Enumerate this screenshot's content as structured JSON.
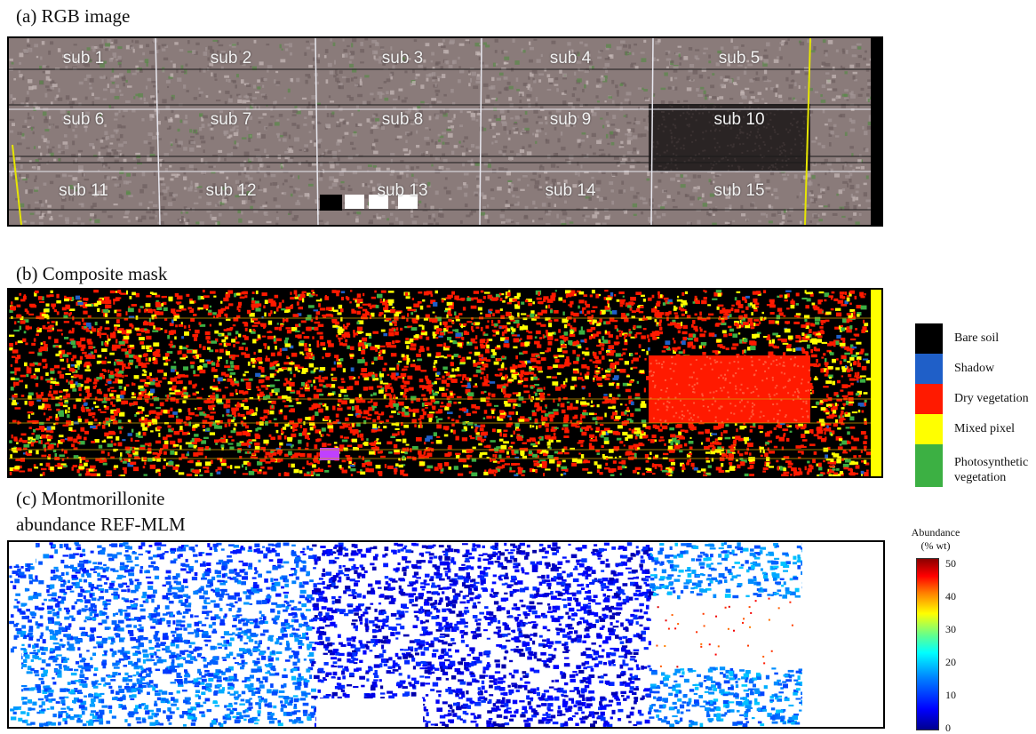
{
  "panel_a": {
    "label": "(a) RGB image",
    "subplots": [
      "sub 1",
      "sub 2",
      "sub 3",
      "sub 4",
      "sub 5",
      "sub 6",
      "sub 7",
      "sub 8",
      "sub 9",
      "sub 10",
      "sub 11",
      "sub 12",
      "sub 13",
      "sub 14",
      "sub 15"
    ]
  },
  "panel_b": {
    "label": "(b) Composite mask",
    "legend": [
      {
        "label": "Bare soil",
        "color": "#000000"
      },
      {
        "label": "Shadow",
        "color": "#1f5fc8"
      },
      {
        "label": "Dry vegetation",
        "color": "#ff1a00"
      },
      {
        "label": "Mixed pixel",
        "color": "#ffff00"
      },
      {
        "label": "Photosynthetic vegetation",
        "color": "#3cb043"
      }
    ]
  },
  "panel_c": {
    "label_line1": "(c) Montmorillonite",
    "label_line2": "abundance REF-MLM",
    "colorbar": {
      "title_line1": "Abundance",
      "title_line2": "(% wt)",
      "ticks": [
        "50",
        "40",
        "30",
        "20",
        "10",
        "0"
      ],
      "min": 0,
      "max": 50
    }
  },
  "colors": {
    "soil": "#8a7b7a",
    "dark_plot": "#2a2424",
    "dry_veg": "#ff1a00",
    "mixed": "#ffff00",
    "photo_veg": "#3cb043"
  }
}
